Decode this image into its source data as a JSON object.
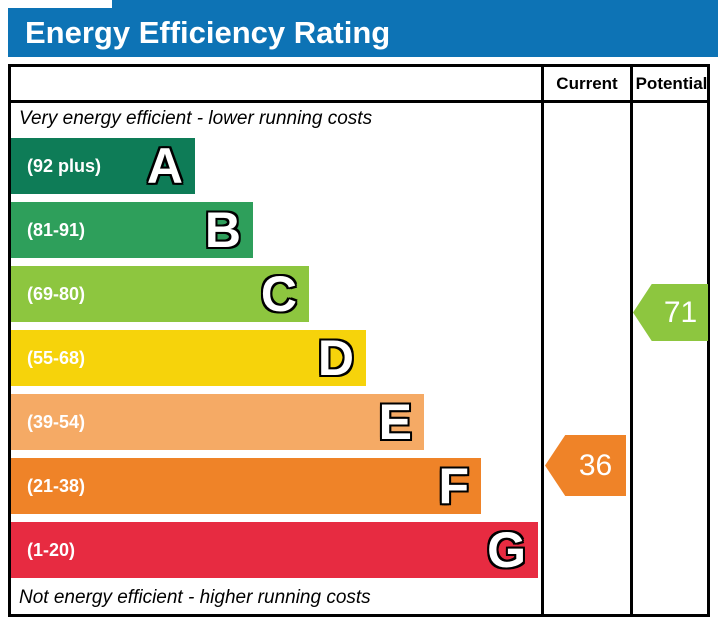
{
  "title": "Energy Efficiency Rating",
  "table": {
    "current_label": "Current",
    "potential_label": "Potential",
    "top_note": "Very energy efficient - lower running costs",
    "bottom_note": "Not energy efficient - higher running costs"
  },
  "bands": [
    {
      "letter": "A",
      "range_label": "(92 plus)",
      "color": "#0e7c57"
    },
    {
      "letter": "B",
      "range_label": "(81-91)",
      "color": "#2e9f5b"
    },
    {
      "letter": "C",
      "range_label": "(69-80)",
      "color": "#8dc63f"
    },
    {
      "letter": "D",
      "range_label": "(55-68)",
      "color": "#f6d30b"
    },
    {
      "letter": "E",
      "range_label": "(39-54)",
      "color": "#f5aa65"
    },
    {
      "letter": "F",
      "range_label": "(21-38)",
      "color": "#ef8328"
    },
    {
      "letter": "G",
      "range_label": "(1-20)",
      "color": "#e72b41"
    }
  ],
  "markers": {
    "current": {
      "value": "36",
      "color": "#ef8328"
    },
    "potential": {
      "value": "71",
      "color": "#8dc63f"
    }
  },
  "colors": {
    "header_bg": "#0d73b5",
    "border": "#000000"
  },
  "chart_data": {
    "type": "bar",
    "title": "Energy Efficiency Rating",
    "categories": [
      "A",
      "B",
      "C",
      "D",
      "E",
      "F",
      "G"
    ],
    "band_ranges": [
      "92 plus",
      "81-91",
      "69-80",
      "55-68",
      "39-54",
      "21-38",
      "1-20"
    ],
    "band_colors": [
      "#0e7c57",
      "#2e9f5b",
      "#8dc63f",
      "#f6d30b",
      "#f5aa65",
      "#ef8328",
      "#e72b41"
    ],
    "columns": [
      "Current",
      "Potential"
    ],
    "current_value": 36,
    "current_band": "F",
    "potential_value": 71,
    "potential_band": "C",
    "top_annotation": "Very energy efficient - lower running costs",
    "bottom_annotation": "Not energy efficient - higher running costs",
    "legend_position": "none",
    "grid": false
  }
}
